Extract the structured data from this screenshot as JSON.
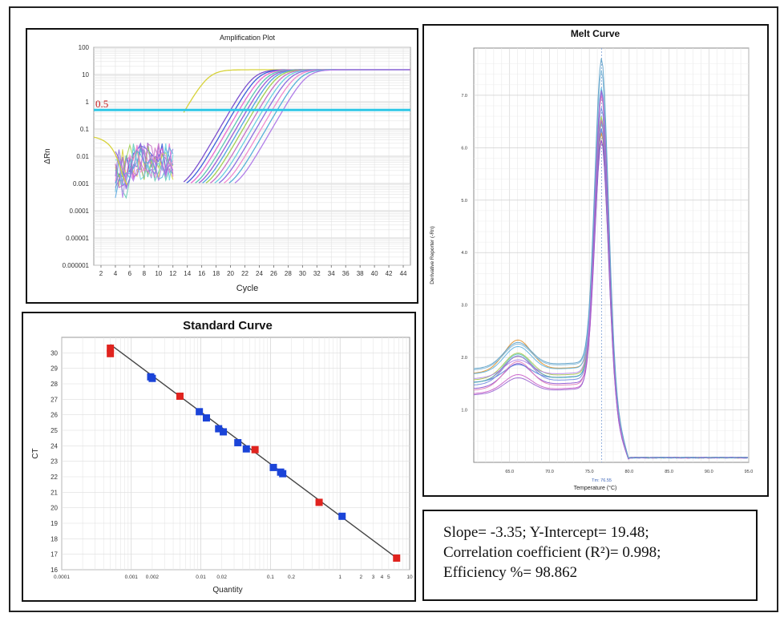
{
  "chart_data": [
    {
      "type": "line",
      "title": "Amplification Plot",
      "xlabel": "Cycle",
      "ylabel": "ΔRn",
      "yscale": "log",
      "ylim": [
        1e-06,
        100
      ],
      "xlim": [
        1,
        45
      ],
      "x_ticks": [
        2,
        4,
        6,
        8,
        10,
        12,
        14,
        16,
        18,
        20,
        22,
        24,
        26,
        28,
        30,
        32,
        34,
        36,
        38,
        40,
        42,
        44
      ],
      "y_tick_labels": [
        "100",
        "10",
        "1",
        "0.1",
        "0.01",
        "0.001",
        "0.0001",
        "0.00001",
        "0.000001"
      ],
      "threshold": {
        "value": 0.5,
        "label": "0.5",
        "color": "#2ec7e6"
      },
      "curve_colors": [
        "#d7d23a",
        "#7b4fcf",
        "#3b5fd9",
        "#e86bd0",
        "#5cc7b2",
        "#9a5bd6",
        "#4fa3e0",
        "#a0d050",
        "#c86fc8",
        "#6ad0e0",
        "#8a6de0",
        "#f08ccf",
        "#55b0d8",
        "#b07de8"
      ],
      "curve_ct": [
        13.5,
        19.8,
        20.4,
        21.0,
        21.6,
        22.1,
        22.6,
        23.1,
        23.7,
        24.3,
        24.9,
        25.6,
        26.3,
        27.1
      ],
      "plateau": 15
    },
    {
      "type": "line",
      "title": "Melt Curve",
      "xlabel": "Temperature (°C)",
      "ylabel": "Derivative Reporter (-Rn)",
      "xlim": [
        60.5,
        95
      ],
      "ylim": [
        0,
        7.9
      ],
      "x_ticks": [
        65.0,
        70.0,
        75.0,
        80.0,
        85.0,
        90.0,
        95.0
      ],
      "y_ticks": [
        1.0,
        2.0,
        3.0,
        4.0,
        5.0,
        6.0,
        7.0
      ],
      "tm_label": "Tm: 76.55",
      "tm": 76.55,
      "peak_min": 6.2,
      "peak_max": 7.6,
      "curve_colors": [
        "#e0902a",
        "#d04a8a",
        "#8a4fd0",
        "#4f7ad8",
        "#4fc0b8",
        "#a6c848",
        "#c65ac8",
        "#6c8ae0",
        "#58b0e0",
        "#b07de8",
        "#e07ab8",
        "#7fb8d8",
        "#9860d0",
        "#5ca0c8"
      ]
    },
    {
      "type": "scatter",
      "title": "Standard Curve",
      "xlabel": "Quantity",
      "ylabel": "CT",
      "xscale": "log",
      "xlim": [
        0.0001,
        10
      ],
      "ylim": [
        16,
        31
      ],
      "x_tick_labels": [
        "0.0001",
        "0.001",
        "0.002",
        "0.01",
        "0.02",
        "0.1",
        "0.2",
        "1",
        "2",
        "3",
        "4",
        "5",
        "10"
      ],
      "y_ticks": [
        16,
        17,
        18,
        19,
        20,
        21,
        22,
        23,
        24,
        25,
        26,
        27,
        28,
        29,
        30
      ],
      "regression": {
        "slope": -3.35,
        "intercept": 19.48
      },
      "standards": {
        "color": "#e0231e",
        "points": [
          [
            0.0005,
            30.3
          ],
          [
            0.0005,
            29.95
          ],
          [
            0.005,
            27.2
          ],
          [
            0.06,
            23.75
          ],
          [
            0.5,
            20.35
          ],
          [
            6.5,
            16.75
          ]
        ]
      },
      "unknowns": {
        "color": "#1b44d8",
        "points": [
          [
            0.0019,
            28.45
          ],
          [
            0.002,
            28.35
          ],
          [
            0.0095,
            26.2
          ],
          [
            0.012,
            25.8
          ],
          [
            0.018,
            25.1
          ],
          [
            0.021,
            24.9
          ],
          [
            0.034,
            24.2
          ],
          [
            0.045,
            23.8
          ],
          [
            0.11,
            22.6
          ],
          [
            0.14,
            22.3
          ],
          [
            0.15,
            22.2
          ],
          [
            1.07,
            19.45
          ]
        ]
      }
    }
  ],
  "stats": {
    "line1": "Slope=  -3.35;  Y-Intercept=  19.48;",
    "line2": "Correlation coefficient (R²)= 0.998;",
    "line3": "Efficiency %= 98.862"
  }
}
